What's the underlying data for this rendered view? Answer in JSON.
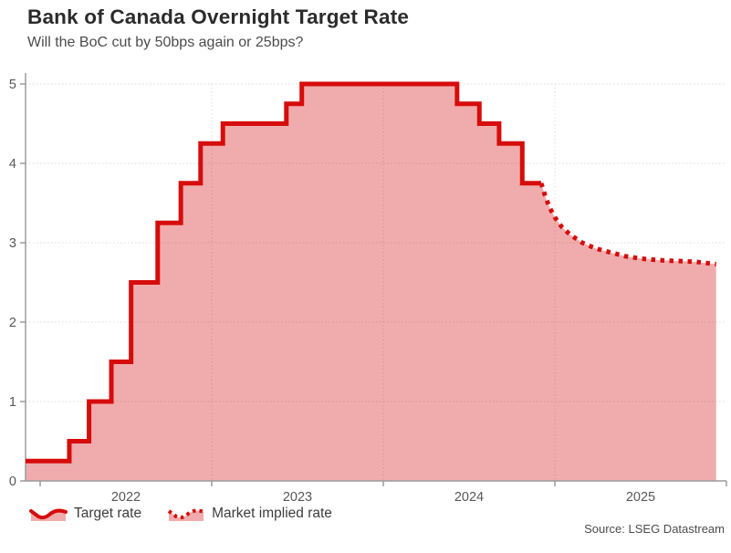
{
  "header": {
    "title": "Bank of Canada Overnight Target Rate",
    "subtitle": "Will the BoC cut by 50bps again or 25bps?"
  },
  "legend": [
    {
      "label": "Target rate",
      "style": "solid"
    },
    {
      "label": "Market implied rate",
      "style": "dotted"
    }
  ],
  "footer": {
    "source": "Source: LSEG Datastream"
  },
  "chart_data": {
    "type": "area",
    "title": "Bank of Canada Overnight Target Rate",
    "subtitle": "Will the BoC cut by 50bps again or 25bps?",
    "xlabel": "",
    "ylabel": "",
    "x_range": [
      2021.915,
      2026.0
    ],
    "ylim": [
      0,
      5.14
    ],
    "yticks": [
      0,
      1,
      2,
      3,
      4,
      5
    ],
    "year_boundary_ticks": [
      2022,
      2023,
      2024,
      2025,
      2026
    ],
    "year_labels": [
      {
        "label": "2022",
        "t": 2022.5
      },
      {
        "label": "2023",
        "t": 2023.5
      },
      {
        "label": "2024",
        "t": 2024.5
      },
      {
        "label": "2025",
        "t": 2025.5
      }
    ],
    "grid": {
      "horizontal_dotted": true,
      "vertical_years": [
        2023,
        2024,
        2025
      ]
    },
    "legend_position": "bottom-left",
    "colors": {
      "line": "#d60c0c",
      "fill": "rgba(214,24,24,0.36)",
      "grid": "#dcdcdc",
      "axis": "#9b9b9b",
      "tick_text": "#575757"
    },
    "series": [
      {
        "name": "Target rate",
        "mode": "step",
        "dash": "solid",
        "points": [
          [
            2021.915,
            0.25
          ],
          [
            2022.17,
            0.5
          ],
          [
            2022.285,
            1.0
          ],
          [
            2022.415,
            1.5
          ],
          [
            2022.53,
            2.5
          ],
          [
            2022.685,
            3.25
          ],
          [
            2022.82,
            3.75
          ],
          [
            2022.935,
            4.25
          ],
          [
            2023.065,
            4.5
          ],
          [
            2023.435,
            4.75
          ],
          [
            2023.525,
            5.0
          ],
          [
            2024.43,
            4.75
          ],
          [
            2024.56,
            4.5
          ],
          [
            2024.675,
            4.25
          ],
          [
            2024.81,
            3.75
          ],
          [
            2024.92,
            3.75
          ]
        ]
      },
      {
        "name": "Market implied rate",
        "mode": "line",
        "dash": "dotted",
        "points": [
          [
            2024.92,
            3.75
          ],
          [
            2024.945,
            3.58
          ],
          [
            2024.97,
            3.44
          ],
          [
            2025.0,
            3.32
          ],
          [
            2025.04,
            3.2
          ],
          [
            2025.09,
            3.1
          ],
          [
            2025.16,
            3.0
          ],
          [
            2025.235,
            2.93
          ],
          [
            2025.32,
            2.88
          ],
          [
            2025.41,
            2.83
          ],
          [
            2025.505,
            2.8
          ],
          [
            2025.61,
            2.78
          ],
          [
            2025.715,
            2.77
          ],
          [
            2025.82,
            2.76
          ],
          [
            2025.94,
            2.73
          ]
        ]
      }
    ]
  }
}
